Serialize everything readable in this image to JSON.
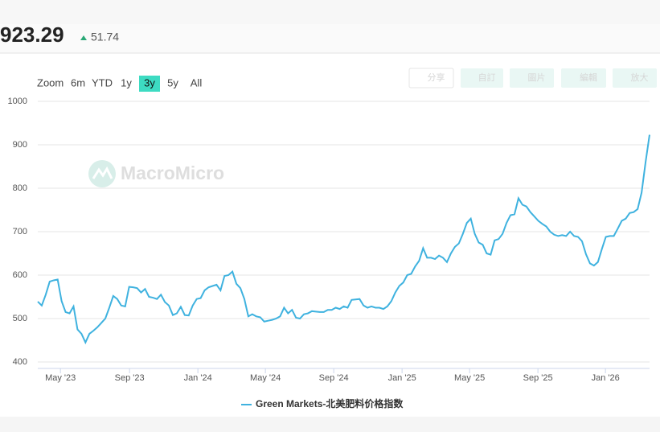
{
  "header": {
    "value": 923.29,
    "change": 51.74
  },
  "range_selector": {
    "label": "Zoom",
    "buttons": [
      "6m",
      "YTD",
      "1y",
      "3y",
      "5y",
      "All"
    ],
    "selected": 3
  },
  "toolbar": [
    "分享",
    "自訂",
    "圖片",
    "編輯",
    "放大"
  ],
  "watermark": "MacroMicro",
  "chart_data": {
    "type": "line",
    "grid": true,
    "xlim": [
      0,
      154
    ],
    "xticks": [
      {
        "value": 5.7,
        "label": "May '23"
      },
      {
        "value": 23.1,
        "label": "Sep '23"
      },
      {
        "value": 40.3,
        "label": "Jan '24"
      },
      {
        "value": 57.3,
        "label": "May '24"
      },
      {
        "value": 74.5,
        "label": "Sep '24"
      },
      {
        "value": 91.7,
        "label": "Jan '25"
      },
      {
        "value": 108.7,
        "label": "May '25"
      },
      {
        "value": 125.9,
        "label": "Sep '25"
      },
      {
        "value": 142.9,
        "label": "Jan '26"
      }
    ],
    "ylim": [
      400,
      1000
    ],
    "yticks": [
      400,
      500,
      600,
      700,
      800,
      900,
      1000
    ],
    "series": [
      {
        "name": "Green Markets-北美肥料价格指数",
        "color": "#3fb2df",
        "values": [
          539,
          530,
          555,
          585,
          588,
          590,
          540,
          515,
          512,
          528,
          475,
          465,
          445,
          465,
          472,
          480,
          490,
          500,
          525,
          552,
          545,
          530,
          528,
          573,
          572,
          570,
          560,
          568,
          550,
          548,
          545,
          555,
          538,
          530,
          508,
          512,
          527,
          508,
          507,
          530,
          545,
          547,
          565,
          572,
          575,
          578,
          565,
          598,
          600,
          608,
          580,
          570,
          545,
          505,
          510,
          505,
          503,
          493,
          495,
          497,
          500,
          505,
          525,
          512,
          520,
          502,
          500,
          510,
          512,
          517,
          516,
          515,
          515,
          520,
          520,
          525,
          522,
          528,
          525,
          543,
          544,
          545,
          530,
          525,
          528,
          525,
          525,
          522,
          528,
          540,
          560,
          575,
          583,
          600,
          603,
          620,
          633,
          662,
          640,
          640,
          637,
          645,
          640,
          630,
          650,
          665,
          673,
          695,
          720,
          730,
          695,
          675,
          670,
          650,
          647,
          680,
          683,
          695,
          720,
          738,
          740,
          777,
          762,
          758,
          745,
          735,
          725,
          718,
          712,
          700,
          693,
          690,
          692,
          690,
          700,
          690,
          688,
          678,
          648,
          627,
          622,
          630,
          660,
          688,
          690,
          690,
          707,
          725,
          730,
          743,
          745,
          752,
          790,
          860,
          923
        ]
      }
    ]
  }
}
